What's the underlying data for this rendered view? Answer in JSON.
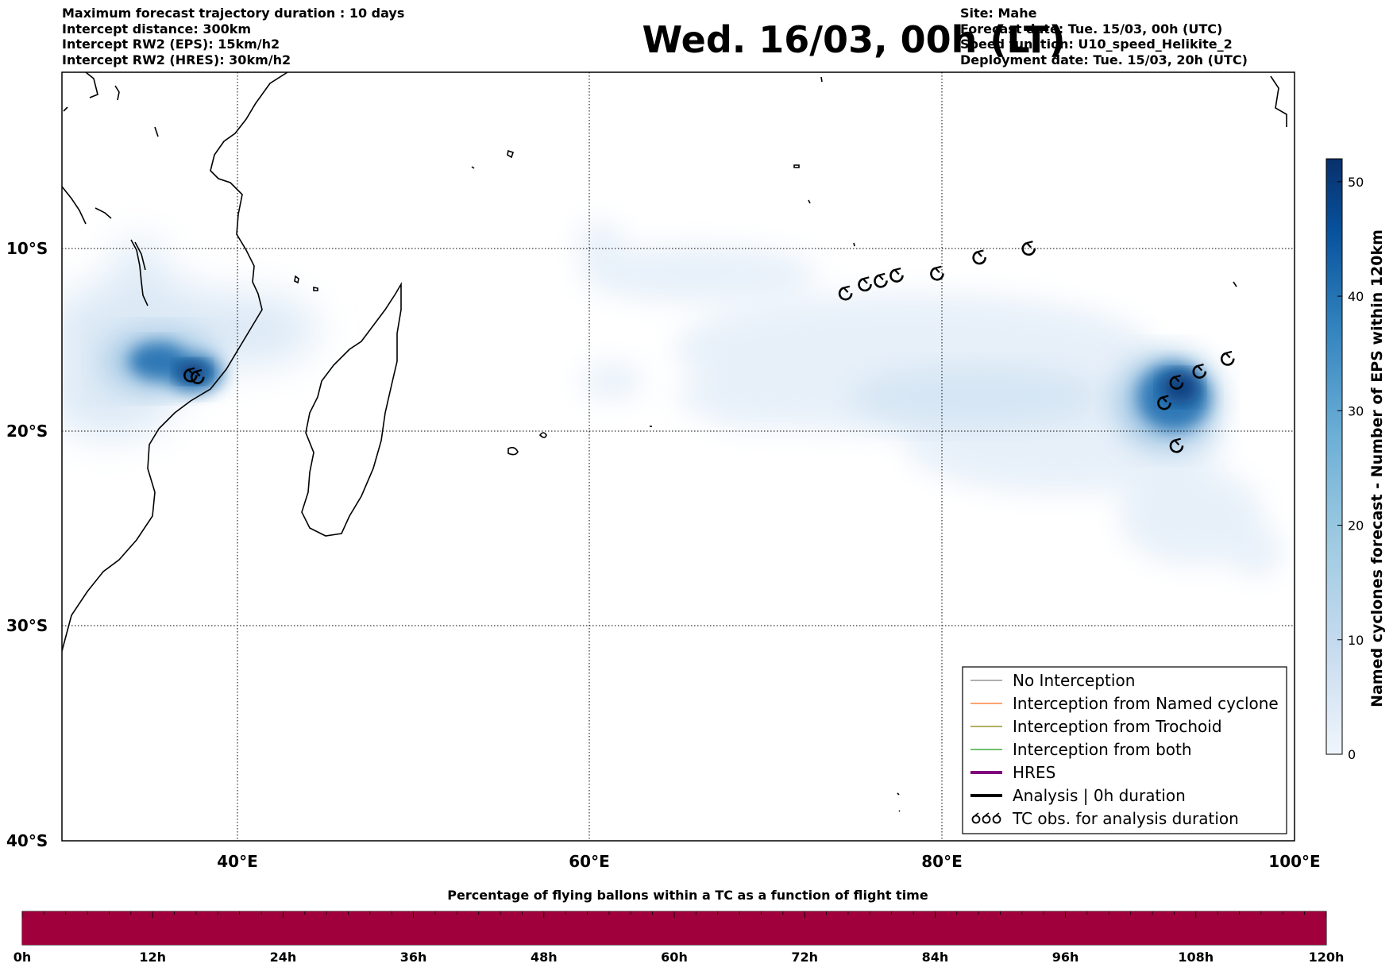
{
  "header": {
    "left_lines": [
      "Maximum forecast trajectory duration : 10 days",
      "Intercept distance: 300km",
      "Intercept RW2 (EPS):  15km/h2",
      "Intercept RW2 (HRES): 30km/h2"
    ],
    "right_lines": [
      "Site: Mahe",
      "Forecast date: Tue. 15/03, 00h (UTC)",
      "Speed function: U10_speed_Helikite_2",
      "Deployment date: Tue. 15/03, 20h (UTC)"
    ],
    "title": "Wed. 16/03, 00h (LT)"
  },
  "map": {
    "lon_range": [
      30,
      100
    ],
    "lat_range": [
      -40,
      0
    ],
    "lon_ticks": [
      "40°E",
      "60°E",
      "80°E",
      "100°E"
    ],
    "lat_ticks": [
      "10°S",
      "20°S",
      "30°S",
      "40°S"
    ],
    "grid": "dotted",
    "tc_obs": [
      {
        "lon": 74.5,
        "lat": -12.5
      },
      {
        "lon": 75.6,
        "lat": -12.0
      },
      {
        "lon": 76.5,
        "lat": -11.8
      },
      {
        "lon": 77.4,
        "lat": -11.5
      },
      {
        "lon": 79.7,
        "lat": -11.4
      },
      {
        "lon": 82.1,
        "lat": -10.5
      },
      {
        "lon": 84.9,
        "lat": -10.0
      },
      {
        "lon": 37.3,
        "lat": -17.0
      },
      {
        "lon": 37.7,
        "lat": -17.1
      },
      {
        "lon": 96.2,
        "lat": -16.1
      },
      {
        "lon": 94.6,
        "lat": -16.8
      },
      {
        "lon": 93.3,
        "lat": -17.4
      },
      {
        "lon": 92.6,
        "lat": -18.5
      },
      {
        "lon": 93.3,
        "lat": -20.8
      }
    ]
  },
  "legend": {
    "items": [
      {
        "label": "No Interception",
        "color": "#808080",
        "width": 1.2
      },
      {
        "label": "Interception from Named cyclone",
        "color": "#ff6a1a",
        "width": 1.2
      },
      {
        "label": "Interception from Trochoid",
        "color": "#808000",
        "width": 1.2
      },
      {
        "label": "Interception from both",
        "color": "#1a9a1a",
        "width": 1.2
      },
      {
        "label": "HRES",
        "color": "#800080",
        "width": 4
      },
      {
        "label": "Analysis | 0h duration",
        "color": "#000000",
        "width": 4
      },
      {
        "label": "TC obs. for analysis duration",
        "color": "#000000",
        "width": 0
      }
    ],
    "tc_symbol": "ζζζ"
  },
  "colorbar": {
    "label": "Named cyclones forecast - Number of EPS within 120km",
    "range": [
      0,
      52
    ],
    "ticks": [
      "0",
      "10",
      "20",
      "30",
      "40",
      "50"
    ],
    "colors": [
      "#f0f5fc",
      "#c6dbef",
      "#9ecae1",
      "#6baed6",
      "#3182bd",
      "#08519c",
      "#08306b"
    ]
  },
  "bottom_bar": {
    "title": "Percentage of flying ballons within a TC as a function of flight time",
    "ticks": [
      "0h",
      "12h",
      "24h",
      "36h",
      "48h",
      "60h",
      "72h",
      "84h",
      "96h",
      "108h",
      "120h"
    ],
    "fill_color": "#a0003c",
    "percentage": 100
  }
}
